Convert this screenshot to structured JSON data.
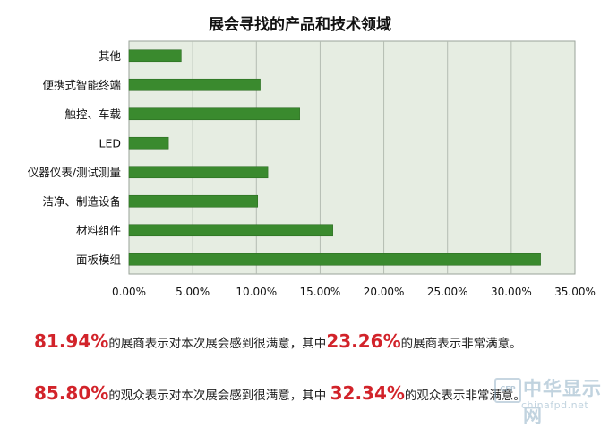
{
  "chart_data": {
    "type": "bar",
    "orientation": "horizontal",
    "title": "展会寻找的产品和技术领域",
    "categories": [
      "其他",
      "便携式智能终端",
      "触控、车载",
      "LED",
      "仪器仪表/测试测量",
      "洁净、制造设备",
      "材料组件",
      "面板模组"
    ],
    "values": [
      4.1,
      10.3,
      13.4,
      3.1,
      10.9,
      10.1,
      16.0,
      32.3
    ],
    "xlim": [
      0,
      35
    ],
    "xticks": [
      "0.00%",
      "5.00%",
      "10.00%",
      "15.00%",
      "20.00%",
      "25.00%",
      "30.00%",
      "35.00%"
    ],
    "grid": true,
    "legend": "none",
    "bar_color": "#3a8a2e",
    "plot_background": "#e6ede2"
  },
  "stats": [
    {
      "value1": "81.94%",
      "text1": "的展商表示对本次展会感到很满意，其中",
      "value2": "23.26%",
      "text2": "的展商表示非常满意。"
    },
    {
      "value1": "85.80%",
      "text1": "的观众表示对本次展会感到很满意，其中 ",
      "value2": "32.34%",
      "text2": "的观众表示非常满意。"
    }
  ],
  "colors": {
    "accent": "#d2232a",
    "bar": "#3a8a2e",
    "watermark": "#8fb0c6"
  },
  "watermark": {
    "badge": "CFP",
    "cn": "中华显示网",
    "en": "chinafpd.net"
  }
}
